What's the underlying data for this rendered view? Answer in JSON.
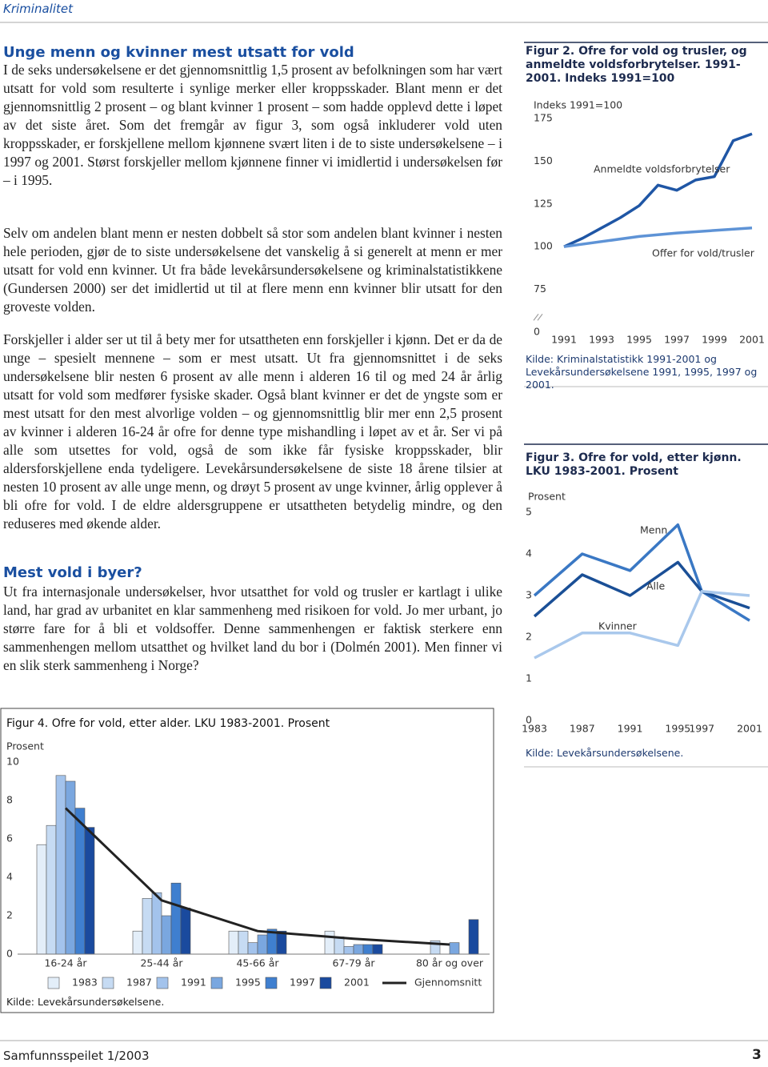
{
  "header": "Kriminalitet",
  "article": {
    "sections": [
      {
        "title": "Unge menn og kvinner mest utsatt for vold",
        "paragraphs": [
          "I de seks undersøkelsene er det gjennomsnittlig 1,5 prosent av befolkningen som har vært utsatt for vold som resulterte i synlige merker eller kroppsskader. Blant menn er det gjennomsnittlig 2 prosent – og blant kvinner 1 prosent – som hadde opplevd dette i løpet av det siste året. Som det fremgår av figur 3, som også inkluderer vold uten kroppsskader, er forskjellene mellom kjønnene svært liten i de to siste undersøkelsene – i 1997 og 2001. Størst forskjeller mellom kjønnene finner vi imidlertid i undersøkelsen før – i 1995.",
          "Selv om andelen blant menn er nesten dobbelt så stor som andelen blant kvinner i nesten hele perioden, gjør de to siste undersøkelsene det vanskelig å si generelt at menn er mer utsatt for vold enn kvinner. Ut fra både levekårsundersøkelsene og kriminalstatistikkene (Gundersen 2000) ser det imidlertid ut til at flere menn enn kvinner blir utsatt for den groveste volden.",
          "Forskjeller i alder ser ut til å bety mer for utsattheten enn forskjeller i kjønn. Det er da de unge – spesielt mennene – som er mest utsatt. Ut fra gjennomsnittet i de seks undersøkelsene blir nesten 6 prosent av alle menn i alderen 16 til og med 24 år årlig utsatt for vold som medfører fysiske skader. Også blant kvinner er det de yngste som er mest utsatt for den mest alvorlige volden – og gjennomsnittlig blir mer enn 2,5 prosent av kvinner i alderen 16-24 år ofre for denne type mishandling i løpet av et år. Ser vi på alle som utsettes for vold, også de som ikke får fysiske kroppsskader, blir aldersforskjellene enda tydeligere. Levekårsundersøkelsene de siste 18 årene tilsier at nesten 10 prosent av alle unge menn, og drøyt 5 prosent av unge kvinner, årlig opplever å bli ofre for vold. I de eldre aldersgruppene er utsattheten betydelig mindre, og den reduseres med økende alder."
        ]
      },
      {
        "title": "Mest vold i byer?",
        "paragraphs": [
          "Ut fra internasjonale undersøkelser, hvor utsatthet for vold og trusler er kartlagt i ulike land, har grad av urbanitet en klar sammenheng med risikoen for vold. Jo mer urbant, jo større fare for å bli et voldsoffer. Denne sammenhengen er faktisk sterkere enn sammenhengen mellom utsatthet og hvilket land du bor i (Dolmén 2001). Men finner vi en slik sterk sammenheng i Norge?"
        ]
      }
    ]
  },
  "chart_data": [
    {
      "type": "line",
      "title": "Figur 2. Ofre for vold og trusler, og anmeldte voldsforbrytelser. 1991-2001. Indeks 1991=100",
      "ylabel": "Indeks 1991=100",
      "axis_break": true,
      "xlim": [
        1991,
        2001
      ],
      "xticks": [
        1991,
        1993,
        1995,
        1997,
        1999,
        2001
      ],
      "ylim": [
        0,
        175
      ],
      "yticks": [
        0,
        75,
        100,
        125,
        150,
        175
      ],
      "series": [
        {
          "name": "Anmeldte voldsforbrytelser",
          "color": "#1f56a5",
          "x": [
            1991,
            1992,
            1993,
            1994,
            1995,
            1996,
            1997,
            1998,
            1999,
            2000,
            2001
          ],
          "values": [
            100,
            105,
            111,
            117,
            124,
            136,
            133,
            139,
            141,
            162,
            166
          ]
        },
        {
          "name": "Offer for vold/trusler",
          "color": "#5e93d6",
          "x": [
            1991,
            1995,
            1997,
            2001
          ],
          "values": [
            100,
            106,
            108,
            111
          ]
        }
      ],
      "source": "Kilde: Kriminalstatistikk 1991-2001 og Levekårsundersøkelsene 1991, 1995, 1997 og 2001."
    },
    {
      "type": "line",
      "title": "Figur 3. Ofre for vold, etter kjønn. LKU 1983-2001. Prosent",
      "ylabel": "Prosent",
      "xlim": [
        1983,
        2001
      ],
      "xticks": [
        1983,
        1987,
        1991,
        1995,
        1997,
        2001
      ],
      "ylim": [
        0,
        5
      ],
      "yticks": [
        0,
        1,
        2,
        3,
        4,
        5
      ],
      "series": [
        {
          "name": "Menn",
          "color": "#3a78c4",
          "x": [
            1983,
            1987,
            1991,
            1995,
            1997,
            2001
          ],
          "values": [
            3.0,
            4.0,
            3.6,
            4.7,
            3.1,
            2.4
          ]
        },
        {
          "name": "Alle",
          "color": "#1a4f96",
          "x": [
            1983,
            1987,
            1991,
            1995,
            1997,
            2001
          ],
          "values": [
            2.5,
            3.5,
            3.0,
            3.8,
            3.1,
            2.7
          ]
        },
        {
          "name": "Kvinner",
          "color": "#a9c8ec",
          "x": [
            1983,
            1987,
            1991,
            1995,
            1997,
            2001
          ],
          "values": [
            1.5,
            2.1,
            2.1,
            1.8,
            3.1,
            3.0
          ]
        }
      ],
      "source": "Kilde: Levekårsundersøkelsene."
    },
    {
      "type": "bar",
      "title": "Figur 4. Ofre for vold, etter alder. LKU 1983-2001. Prosent",
      "ylabel": "Prosent",
      "categories": [
        "16-24 år",
        "25-44 år",
        "45-66 år",
        "67-79 år",
        "80 år og over"
      ],
      "ylim": [
        0,
        10
      ],
      "yticks": [
        0,
        2,
        4,
        6,
        8,
        10
      ],
      "series": [
        {
          "name": "1983",
          "color": "#e3eef9",
          "values": [
            5.7,
            1.2,
            1.2,
            1.2,
            0
          ]
        },
        {
          "name": "1987",
          "color": "#c6dbf3",
          "values": [
            6.7,
            2.9,
            1.2,
            0.9,
            0.7
          ]
        },
        {
          "name": "1991",
          "color": "#a3c3ec",
          "values": [
            9.3,
            3.2,
            0.6,
            0.4,
            0
          ]
        },
        {
          "name": "1995",
          "color": "#7aa7df",
          "values": [
            9.0,
            2.0,
            1.0,
            0.5,
            0.6
          ]
        },
        {
          "name": "1997",
          "color": "#3f7fcf",
          "values": [
            7.6,
            3.7,
            1.3,
            0.5,
            0
          ]
        },
        {
          "name": "2001",
          "color": "#1a4a9e",
          "values": [
            6.6,
            2.4,
            1.2,
            0.5,
            1.8
          ]
        },
        {
          "name": "Gjennomsnitt",
          "type": "line",
          "color": "#222222",
          "values": [
            7.6,
            2.8,
            1.2,
            0.8,
            0.5
          ]
        }
      ],
      "source": "Kilde: Levekårsundersøkelsene."
    }
  ],
  "footer": {
    "publication": "Samfunnsspeilet 1/2003",
    "page": "3"
  }
}
